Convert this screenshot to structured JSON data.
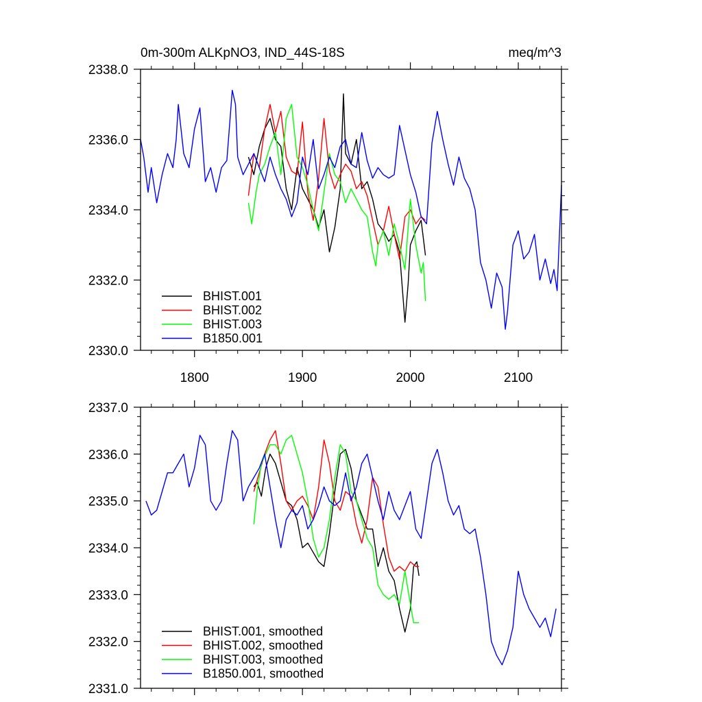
{
  "chart_data": [
    {
      "type": "line",
      "title": "0m-300m ALKpNO3, IND_44S-18S",
      "units": "meq/m^3",
      "xlim": [
        1750,
        2140
      ],
      "ylim": [
        2330.0,
        2338.0
      ],
      "xticks": [
        1800,
        1900,
        2000,
        2100
      ],
      "xtick_labels": [
        "1800",
        "1900",
        "2000",
        "2100"
      ],
      "yticks": [
        2330,
        2332,
        2334,
        2336,
        2338
      ],
      "ytick_labels": [
        "2330.0",
        "2332.0",
        "2334.0",
        "2336.0",
        "2338.0"
      ],
      "legend_position": "bottom-left",
      "series": [
        {
          "name": "BHIST.001",
          "color": "#000000",
          "x": [
            1850,
            1855,
            1860,
            1865,
            1870,
            1875,
            1880,
            1885,
            1890,
            1895,
            1900,
            1905,
            1910,
            1915,
            1920,
            1925,
            1930,
            1935,
            1938,
            1940,
            1945,
            1950,
            1955,
            1960,
            1965,
            1970,
            1975,
            1980,
            1985,
            1990,
            1995,
            1998,
            2000,
            2005,
            2010,
            2014
          ],
          "y": [
            2335.5,
            2335.0,
            2335.8,
            2336.3,
            2336.6,
            2336.0,
            2335.8,
            2334.6,
            2334.0,
            2335.2,
            2334.6,
            2334.3,
            2334.0,
            2333.5,
            2334.0,
            2332.8,
            2333.5,
            2334.6,
            2337.3,
            2335.6,
            2335.3,
            2336.0,
            2334.6,
            2334.8,
            2334.3,
            2333.6,
            2333.4,
            2333.1,
            2333.3,
            2332.8,
            2330.8,
            2331.9,
            2333.0,
            2333.4,
            2333.7,
            2332.7
          ]
        },
        {
          "name": "BHIST.002",
          "color": "#ff0000",
          "x": [
            1850,
            1855,
            1860,
            1865,
            1870,
            1875,
            1880,
            1885,
            1890,
            1895,
            1900,
            1905,
            1910,
            1915,
            1920,
            1925,
            1930,
            1935,
            1940,
            1945,
            1950,
            1955,
            1960,
            1965,
            1970,
            1975,
            1980,
            1985,
            1990,
            1995,
            2000,
            2005,
            2010,
            2014
          ],
          "y": [
            2334.4,
            2335.6,
            2335.2,
            2336.3,
            2337.0,
            2336.2,
            2336.8,
            2335.5,
            2335.1,
            2335.0,
            2336.5,
            2334.5,
            2333.7,
            2334.9,
            2336.6,
            2335.1,
            2334.6,
            2335.0,
            2335.3,
            2335.1,
            2334.6,
            2334.8,
            2334.4,
            2333.7,
            2333.0,
            2333.4,
            2334.1,
            2333.3,
            2332.6,
            2333.8,
            2334.0,
            2333.6,
            2333.8,
            2333.7
          ]
        },
        {
          "name": "BHIST.003",
          "color": "#00ff00",
          "x": [
            1850,
            1853,
            1857,
            1860,
            1865,
            1870,
            1875,
            1880,
            1885,
            1890,
            1895,
            1900,
            1905,
            1910,
            1915,
            1920,
            1925,
            1930,
            1935,
            1940,
            1945,
            1950,
            1955,
            1960,
            1965,
            1968,
            1970,
            1975,
            1980,
            1985,
            1990,
            1995,
            2000,
            2005,
            2010,
            2012,
            2014
          ],
          "y": [
            2334.2,
            2333.6,
            2334.5,
            2335.0,
            2335.3,
            2335.8,
            2336.2,
            2335.0,
            2336.6,
            2337.0,
            2335.5,
            2335.2,
            2334.7,
            2334.0,
            2333.4,
            2334.5,
            2335.6,
            2335.0,
            2334.8,
            2334.2,
            2334.6,
            2334.3,
            2334.0,
            2333.8,
            2332.8,
            2332.4,
            2333.0,
            2333.4,
            2332.7,
            2333.6,
            2333.0,
            2332.3,
            2334.3,
            2333.0,
            2332.2,
            2332.5,
            2331.4
          ]
        },
        {
          "name": "B1850.001",
          "color": "#0000ff",
          "x": [
            1750,
            1753,
            1757,
            1760,
            1765,
            1770,
            1775,
            1780,
            1783,
            1785,
            1790,
            1795,
            1800,
            1805,
            1810,
            1815,
            1820,
            1825,
            1830,
            1835,
            1838,
            1840,
            1845,
            1850,
            1855,
            1860,
            1865,
            1870,
            1875,
            1880,
            1885,
            1890,
            1895,
            1900,
            1905,
            1910,
            1915,
            1920,
            1925,
            1930,
            1935,
            1940,
            1945,
            1950,
            1955,
            1960,
            1965,
            1970,
            1975,
            1980,
            1985,
            1990,
            1995,
            2000,
            2005,
            2010,
            2015,
            2020,
            2025,
            2030,
            2035,
            2040,
            2045,
            2050,
            2055,
            2060,
            2065,
            2070,
            2075,
            2080,
            2085,
            2088,
            2090,
            2095,
            2100,
            2105,
            2110,
            2115,
            2120,
            2125,
            2130,
            2133,
            2136,
            2140
          ],
          "y": [
            2336.0,
            2335.5,
            2334.5,
            2335.2,
            2334.2,
            2335.0,
            2335.6,
            2335.2,
            2336.0,
            2337.0,
            2335.6,
            2335.2,
            2336.3,
            2336.9,
            2334.8,
            2335.2,
            2334.5,
            2335.2,
            2335.4,
            2337.4,
            2337.0,
            2335.5,
            2335.0,
            2335.3,
            2335.6,
            2335.2,
            2334.8,
            2335.5,
            2335.0,
            2334.6,
            2334.3,
            2333.8,
            2334.2,
            2335.5,
            2335.0,
            2336.0,
            2334.6,
            2335.0,
            2335.5,
            2335.2,
            2335.8,
            2336.0,
            2335.3,
            2335.2,
            2336.2,
            2335.4,
            2334.9,
            2335.2,
            2335.0,
            2334.9,
            2335.0,
            2336.4,
            2335.7,
            2335.0,
            2334.5,
            2333.8,
            2333.6,
            2335.9,
            2336.8,
            2336.0,
            2335.3,
            2334.7,
            2335.5,
            2334.9,
            2334.6,
            2334.0,
            2332.5,
            2332.0,
            2331.2,
            2332.2,
            2331.8,
            2330.6,
            2331.1,
            2333.0,
            2333.4,
            2332.6,
            2332.8,
            2333.3,
            2332.0,
            2332.6,
            2331.9,
            2332.3,
            2331.7,
            2334.7
          ]
        }
      ]
    },
    {
      "type": "line",
      "title": "",
      "xlim": [
        1750,
        2140
      ],
      "ylim": [
        2331.0,
        2337.0
      ],
      "xticks": [
        1800,
        1900,
        2000,
        2100
      ],
      "yticks": [
        2331,
        2332,
        2333,
        2334,
        2335,
        2336,
        2337
      ],
      "ytick_labels": [
        "2331.0",
        "2332.0",
        "2333.0",
        "2334.0",
        "2335.0",
        "2336.0",
        "2337.0"
      ],
      "legend_position": "bottom-left",
      "series": [
        {
          "name": "BHIST.001, smoothed",
          "color": "#000000",
          "x": [
            1855,
            1858,
            1862,
            1866,
            1870,
            1875,
            1880,
            1885,
            1890,
            1895,
            1900,
            1905,
            1910,
            1915,
            1920,
            1925,
            1930,
            1935,
            1940,
            1945,
            1950,
            1955,
            1960,
            1965,
            1970,
            1975,
            1980,
            1985,
            1990,
            1995,
            2000,
            2003,
            2006,
            2008
          ],
          "y": [
            2335.3,
            2335.4,
            2335.1,
            2335.7,
            2336.0,
            2335.8,
            2335.4,
            2335.0,
            2334.9,
            2334.6,
            2334.0,
            2334.1,
            2333.9,
            2333.7,
            2333.6,
            2334.3,
            2335.2,
            2336.0,
            2336.1,
            2335.7,
            2335.0,
            2334.7,
            2334.4,
            2334.4,
            2333.6,
            2334.0,
            2333.5,
            2333.3,
            2332.7,
            2332.2,
            2332.7,
            2333.6,
            2333.7,
            2333.4
          ]
        },
        {
          "name": "BHIST.002, smoothed",
          "color": "#ff0000",
          "x": [
            1855,
            1860,
            1865,
            1870,
            1875,
            1880,
            1885,
            1890,
            1895,
            1900,
            1905,
            1910,
            1915,
            1920,
            1925,
            1930,
            1935,
            1940,
            1945,
            1950,
            1955,
            1960,
            1965,
            1970,
            1975,
            1980,
            1985,
            1990,
            1995,
            2000,
            2005,
            2008
          ],
          "y": [
            2335.2,
            2335.6,
            2336.0,
            2336.3,
            2336.5,
            2335.8,
            2335.0,
            2334.8,
            2335.0,
            2335.1,
            2334.9,
            2334.6,
            2335.3,
            2336.3,
            2335.8,
            2335.0,
            2334.8,
            2335.2,
            2335.1,
            2334.5,
            2334.1,
            2334.6,
            2335.5,
            2335.3,
            2334.5,
            2333.8,
            2333.5,
            2333.6,
            2333.5,
            2333.7,
            2333.6,
            2333.6
          ]
        },
        {
          "name": "BHIST.003, smoothed",
          "color": "#00ff00",
          "x": [
            1855,
            1858,
            1862,
            1866,
            1870,
            1875,
            1880,
            1885,
            1890,
            1895,
            1900,
            1905,
            1910,
            1915,
            1920,
            1925,
            1930,
            1935,
            1940,
            1945,
            1950,
            1955,
            1960,
            1965,
            1970,
            1975,
            1980,
            1985,
            1990,
            1995,
            2000,
            2003,
            2006,
            2008
          ],
          "y": [
            2334.5,
            2335.2,
            2335.8,
            2336.0,
            2336.2,
            2336.2,
            2336.0,
            2336.3,
            2336.4,
            2336.0,
            2335.6,
            2335.0,
            2334.2,
            2333.8,
            2334.0,
            2334.6,
            2335.5,
            2336.2,
            2336.0,
            2335.2,
            2335.0,
            2334.6,
            2334.2,
            2334.0,
            2333.2,
            2333.0,
            2332.9,
            2333.0,
            2332.8,
            2333.5,
            2332.8,
            2332.4,
            2332.4,
            2332.4
          ]
        },
        {
          "name": "B1850.001, smoothed",
          "color": "#0000ff",
          "x": [
            1755,
            1760,
            1765,
            1770,
            1775,
            1780,
            1785,
            1790,
            1795,
            1800,
            1805,
            1810,
            1815,
            1820,
            1825,
            1830,
            1835,
            1840,
            1845,
            1850,
            1855,
            1860,
            1865,
            1870,
            1875,
            1880,
            1885,
            1890,
            1895,
            1900,
            1905,
            1910,
            1915,
            1920,
            1925,
            1930,
            1935,
            1940,
            1945,
            1950,
            1955,
            1960,
            1965,
            1970,
            1975,
            1980,
            1985,
            1990,
            1995,
            2000,
            2005,
            2010,
            2015,
            2020,
            2025,
            2030,
            2035,
            2040,
            2045,
            2050,
            2055,
            2060,
            2065,
            2070,
            2075,
            2080,
            2085,
            2090,
            2095,
            2100,
            2105,
            2110,
            2115,
            2120,
            2125,
            2130,
            2135
          ],
          "y": [
            2335.0,
            2334.7,
            2334.8,
            2335.2,
            2335.6,
            2335.6,
            2335.8,
            2336.0,
            2335.3,
            2335.7,
            2336.4,
            2336.2,
            2335.0,
            2334.8,
            2335.0,
            2335.8,
            2336.5,
            2336.3,
            2335.0,
            2335.3,
            2335.5,
            2335.7,
            2336.0,
            2335.3,
            2334.6,
            2334.0,
            2334.6,
            2334.8,
            2334.7,
            2334.9,
            2334.4,
            2334.6,
            2334.9,
            2335.3,
            2335.0,
            2334.9,
            2335.0,
            2335.6,
            2335.0,
            2335.3,
            2335.8,
            2336.0,
            2335.5,
            2335.0,
            2334.6,
            2335.2,
            2334.8,
            2334.6,
            2334.9,
            2335.2,
            2334.4,
            2334.2,
            2335.0,
            2335.8,
            2336.1,
            2335.6,
            2335.0,
            2334.7,
            2334.9,
            2334.4,
            2334.3,
            2334.4,
            2333.8,
            2333.0,
            2332.0,
            2331.7,
            2331.5,
            2331.8,
            2332.3,
            2333.5,
            2333.0,
            2332.7,
            2332.5,
            2332.3,
            2332.5,
            2332.1,
            2332.7
          ]
        }
      ]
    }
  ]
}
